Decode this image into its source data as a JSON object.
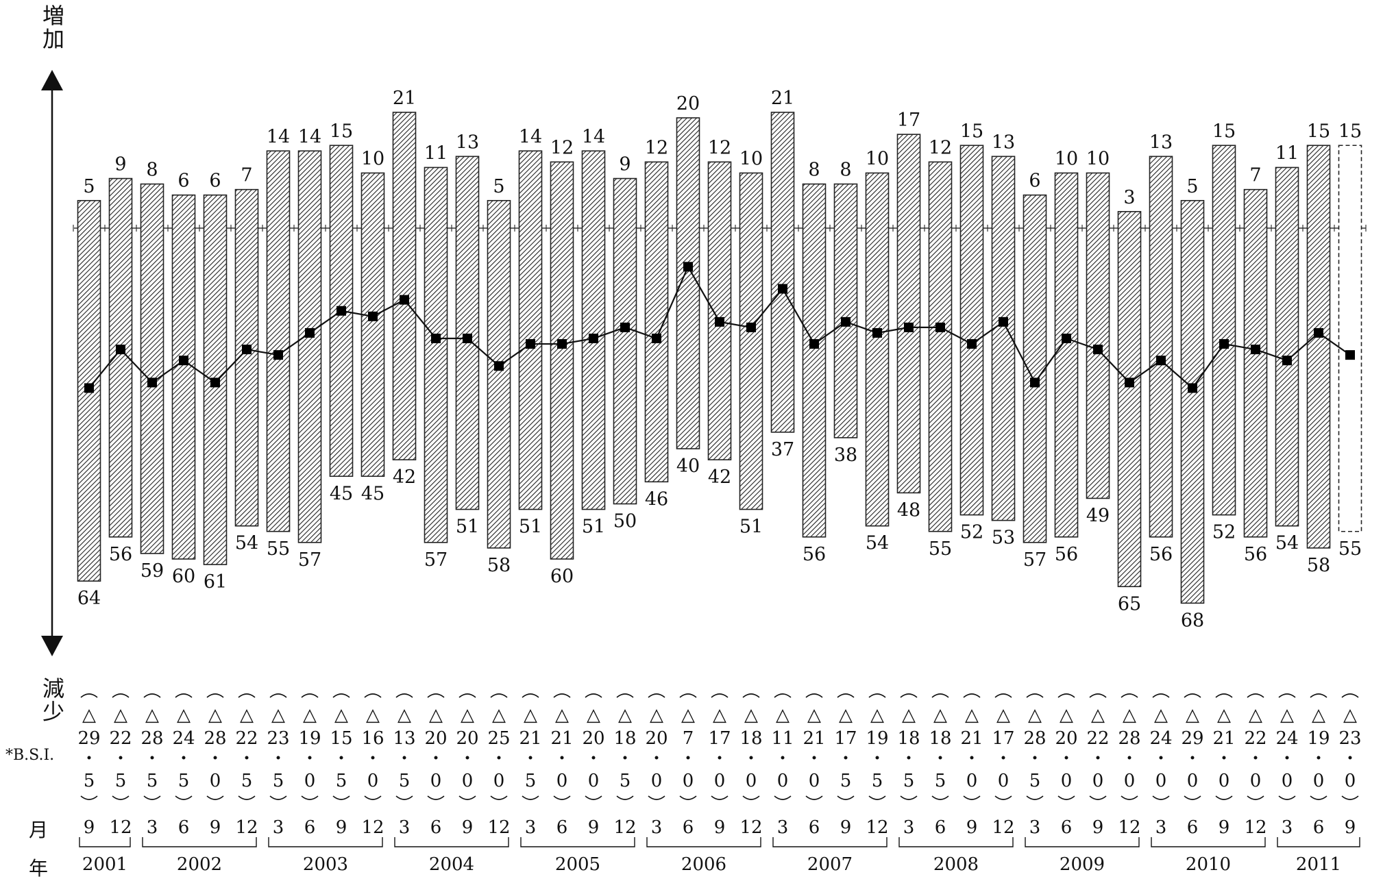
{
  "labels": {
    "increase": "増加",
    "decrease": "減少",
    "bsi_row": "*B.S.I.",
    "month_row": "月",
    "year_row": "年"
  },
  "chart_data": {
    "type": "bar",
    "subtype": "diverging bars with line",
    "categories": [
      "2001/9",
      "2001/12",
      "2002/3",
      "2002/6",
      "2002/9",
      "2002/12",
      "2003/3",
      "2003/6",
      "2003/9",
      "2003/12",
      "2004/3",
      "2004/6",
      "2004/9",
      "2004/12",
      "2005/3",
      "2005/6",
      "2005/9",
      "2005/12",
      "2006/3",
      "2006/6",
      "2006/9",
      "2006/12",
      "2007/3",
      "2007/6",
      "2007/9",
      "2007/12",
      "2008/3",
      "2008/6",
      "2008/9",
      "2008/12",
      "2009/3",
      "2009/6",
      "2009/9",
      "2009/12",
      "2010/3",
      "2010/6",
      "2010/9",
      "2010/12",
      "2011/3",
      "2011/6",
      "2011/9"
    ],
    "months": [
      "9",
      "12",
      "3",
      "6",
      "9",
      "12",
      "3",
      "6",
      "9",
      "12",
      "3",
      "6",
      "9",
      "12",
      "3",
      "6",
      "9",
      "12",
      "3",
      "6",
      "9",
      "12",
      "3",
      "6",
      "9",
      "12",
      "3",
      "6",
      "9",
      "12",
      "3",
      "6",
      "9",
      "12",
      "3",
      "6",
      "9",
      "12",
      "3",
      "6",
      "9"
    ],
    "years": [
      {
        "label": "2001",
        "start": 0,
        "end": 1
      },
      {
        "label": "2002",
        "start": 2,
        "end": 5
      },
      {
        "label": "2003",
        "start": 6,
        "end": 9
      },
      {
        "label": "2004",
        "start": 10,
        "end": 13
      },
      {
        "label": "2005",
        "start": 14,
        "end": 17
      },
      {
        "label": "2006",
        "start": 18,
        "end": 21
      },
      {
        "label": "2007",
        "start": 22,
        "end": 25
      },
      {
        "label": "2008",
        "start": 26,
        "end": 29
      },
      {
        "label": "2009",
        "start": 30,
        "end": 33
      },
      {
        "label": "2010",
        "start": 34,
        "end": 37
      },
      {
        "label": "2011",
        "start": 38,
        "end": 40
      }
    ],
    "series": [
      {
        "name": "増加",
        "values": [
          5,
          9,
          8,
          6,
          6,
          7,
          14,
          14,
          15,
          10,
          21,
          11,
          13,
          5,
          14,
          12,
          14,
          9,
          12,
          20,
          12,
          10,
          21,
          8,
          8,
          10,
          17,
          12,
          15,
          13,
          6,
          10,
          10,
          3,
          13,
          5,
          15,
          7,
          11,
          15,
          15
        ]
      },
      {
        "name": "減少",
        "values": [
          64,
          56,
          59,
          60,
          61,
          54,
          55,
          57,
          45,
          45,
          42,
          57,
          51,
          58,
          51,
          60,
          51,
          50,
          46,
          40,
          42,
          51,
          37,
          56,
          38,
          54,
          48,
          55,
          52,
          53,
          57,
          56,
          49,
          65,
          56,
          68,
          52,
          56,
          54,
          58,
          55
        ]
      },
      {
        "name": "B.S.I.",
        "type": "line",
        "values": [
          -29,
          -22,
          -28,
          -24,
          -28,
          -22,
          -23,
          -19,
          -15,
          -16,
          -13,
          -20,
          -20,
          -25,
          -21,
          -21,
          -20,
          -18,
          -20,
          -7,
          -17,
          -18,
          -11,
          -21,
          -17,
          -19,
          -18,
          -18,
          -21,
          -17,
          -28,
          -20,
          -22,
          -28,
          -24,
          -29,
          -21,
          -22,
          -24,
          -19,
          -23
        ]
      }
    ],
    "bsi_labels": [
      "29.5",
      "22.5",
      "28.5",
      "24.5",
      "28.0",
      "22.5",
      "23.5",
      "19.0",
      "15.5",
      "16.0",
      "13.5",
      "20.0",
      "20.0",
      "25.0",
      "21.5",
      "21.0",
      "20.0",
      "18.5",
      "20.0",
      "7.0",
      "17.0",
      "18.0",
      "11.0",
      "21.0",
      "17.5",
      "19.5",
      "18.5",
      "18.5",
      "21.0",
      "17.0",
      "28.5",
      "20.0",
      "22.0",
      "28.0",
      "24.0",
      "29.0",
      "21.0",
      "22.0",
      "24.0",
      "19.0",
      "23.0"
    ],
    "bsi_prefix": "△",
    "forecast_index": 40,
    "colors": {
      "bar_fill": "#222222",
      "line": "#111111",
      "marker": "#000000"
    }
  }
}
